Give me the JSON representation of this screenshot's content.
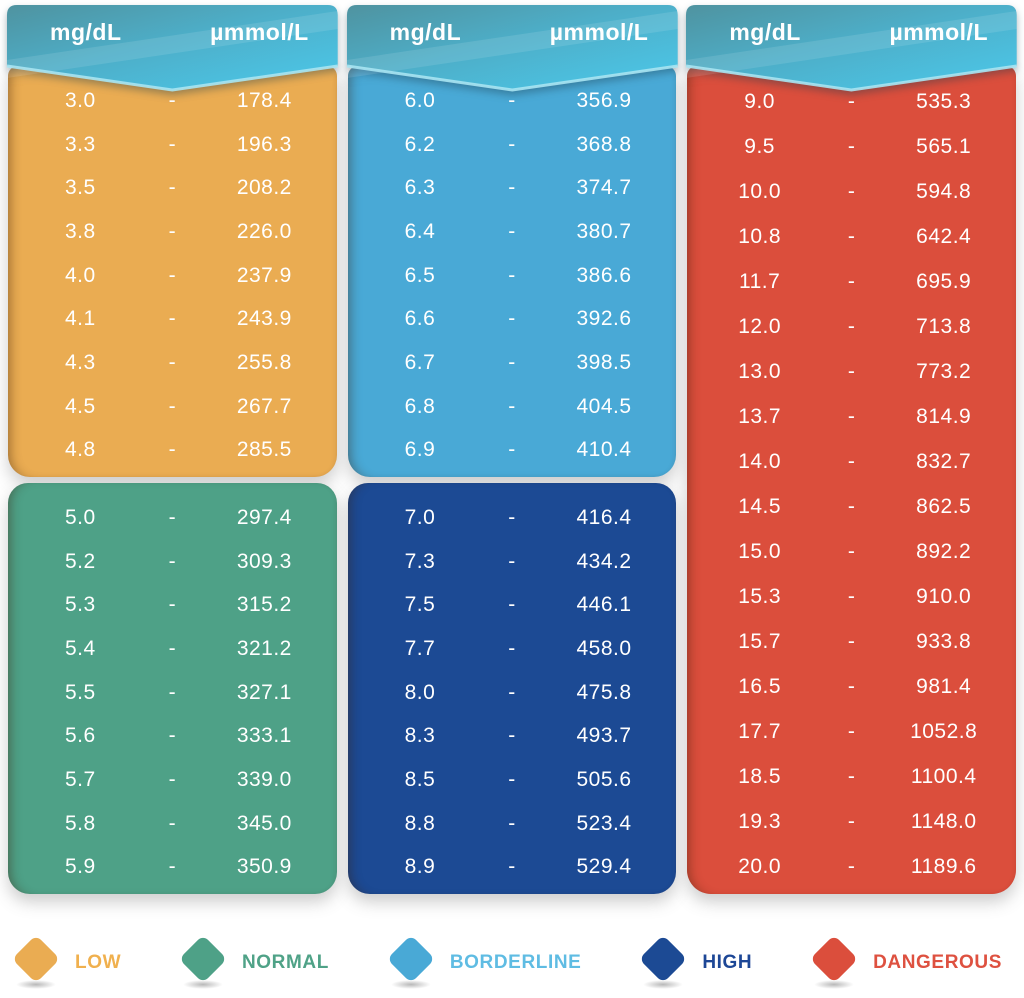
{
  "header": {
    "left_unit": "mg/dL",
    "right_unit": "µmmol/L"
  },
  "separator": "-",
  "colors": {
    "low": "#EAAC52",
    "normal": "#4EA187",
    "borderline": "#49A9D6",
    "high": "#1C4A94",
    "dangerous": "#DB4E3C",
    "ribbon_dark": "#4F93A0",
    "ribbon_mid": "#4DAEC8",
    "ribbon_light": "#4CC9EB",
    "ribbon_edge": "#A9E4F2"
  },
  "chart_data": {
    "type": "table",
    "title": "mg/dL to µmmol/L conversion table",
    "unit_headers": [
      "mg/dL",
      "µmmol/L"
    ],
    "columns": [
      {
        "sections": [
          {
            "status": "low",
            "rows": [
              [
                "3.0",
                "178.4"
              ],
              [
                "3.3",
                "196.3"
              ],
              [
                "3.5",
                "208.2"
              ],
              [
                "3.8",
                "226.0"
              ],
              [
                "4.0",
                "237.9"
              ],
              [
                "4.1",
                "243.9"
              ],
              [
                "4.3",
                "255.8"
              ],
              [
                "4.5",
                "267.7"
              ],
              [
                "4.8",
                "285.5"
              ]
            ]
          },
          {
            "status": "normal",
            "rows": [
              [
                "5.0",
                "297.4"
              ],
              [
                "5.2",
                "309.3"
              ],
              [
                "5.3",
                "315.2"
              ],
              [
                "5.4",
                "321.2"
              ],
              [
                "5.5",
                "327.1"
              ],
              [
                "5.6",
                "333.1"
              ],
              [
                "5.7",
                "339.0"
              ],
              [
                "5.8",
                "345.0"
              ],
              [
                "5.9",
                "350.9"
              ]
            ]
          }
        ]
      },
      {
        "sections": [
          {
            "status": "borderline",
            "rows": [
              [
                "6.0",
                "356.9"
              ],
              [
                "6.2",
                "368.8"
              ],
              [
                "6.3",
                "374.7"
              ],
              [
                "6.4",
                "380.7"
              ],
              [
                "6.5",
                "386.6"
              ],
              [
                "6.6",
                "392.6"
              ],
              [
                "6.7",
                "398.5"
              ],
              [
                "6.8",
                "404.5"
              ],
              [
                "6.9",
                "410.4"
              ]
            ]
          },
          {
            "status": "high",
            "rows": [
              [
                "7.0",
                "416.4"
              ],
              [
                "7.3",
                "434.2"
              ],
              [
                "7.5",
                "446.1"
              ],
              [
                "7.7",
                "458.0"
              ],
              [
                "8.0",
                "475.8"
              ],
              [
                "8.3",
                "493.7"
              ],
              [
                "8.5",
                "505.6"
              ],
              [
                "8.8",
                "523.4"
              ],
              [
                "8.9",
                "529.4"
              ]
            ]
          }
        ]
      },
      {
        "sections": [
          {
            "status": "dangerous",
            "rows": [
              [
                "9.0",
                "535.3"
              ],
              [
                "9.5",
                "565.1"
              ],
              [
                "10.0",
                "594.8"
              ],
              [
                "10.8",
                "642.4"
              ],
              [
                "11.7",
                "695.9"
              ],
              [
                "12.0",
                "713.8"
              ],
              [
                "13.0",
                "773.2"
              ],
              [
                "13.7",
                "814.9"
              ],
              [
                "14.0",
                "832.7"
              ],
              [
                "14.5",
                "862.5"
              ],
              [
                "15.0",
                "892.2"
              ],
              [
                "15.3",
                "910.0"
              ],
              [
                "15.7",
                "933.8"
              ],
              [
                "16.5",
                "981.4"
              ],
              [
                "17.7",
                "1052.8"
              ],
              [
                "18.5",
                "1100.4"
              ],
              [
                "19.3",
                "1148.0"
              ],
              [
                "20.0",
                "1189.6"
              ]
            ]
          }
        ]
      }
    ]
  },
  "legend": [
    {
      "label": "LOW",
      "status": "low",
      "text_color": "#F0B04E"
    },
    {
      "label": "NORMAL",
      "status": "normal",
      "text_color": "#4FA287"
    },
    {
      "label": "BORDERLINE",
      "status": "borderline",
      "text_color": "#5FBCE3"
    },
    {
      "label": "HIGH",
      "status": "high",
      "text_color": "#1D4796"
    },
    {
      "label": "DANGEROUS",
      "status": "dangerous",
      "text_color": "#DE5140"
    }
  ]
}
